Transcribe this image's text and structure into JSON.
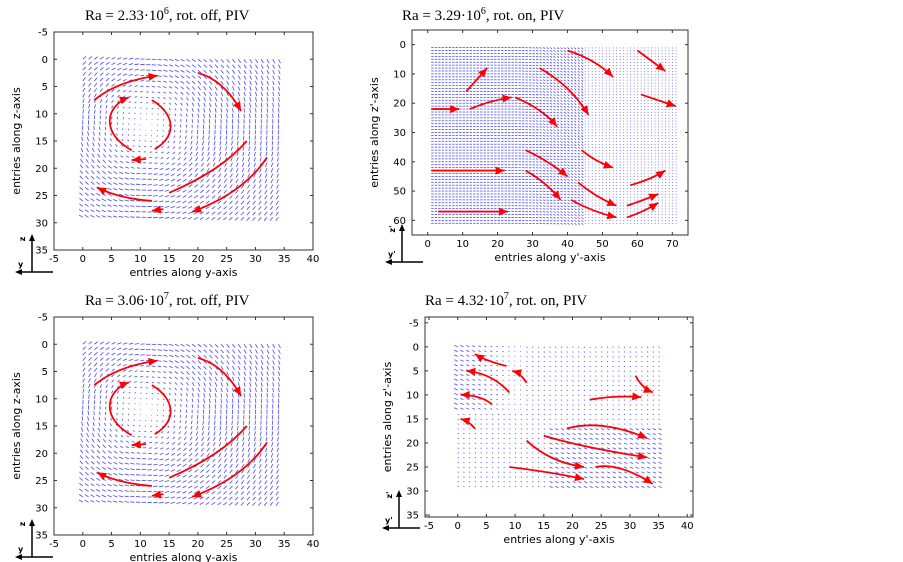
{
  "chart_data": [
    {
      "type": "quiver",
      "title": "Ra = 2.33·10",
      "title_exp": "6",
      "title_suffix": ", rot. off, PIV",
      "xlabel": "entries along y-axis",
      "ylabel": "entries along z-axis",
      "xlim": [
        -5,
        40
      ],
      "ylim": [
        35,
        -5
      ],
      "xticks": [
        -5,
        0,
        5,
        10,
        15,
        20,
        25,
        30,
        35,
        40
      ],
      "yticks": [
        -5,
        0,
        5,
        10,
        15,
        20,
        25,
        30,
        35
      ],
      "grid_x": [
        0,
        34
      ],
      "grid_y": [
        0,
        29
      ],
      "flow_pattern": "clockwise vortex",
      "frame_axes": {
        "vertical": "z",
        "horizontal": "y"
      },
      "vector_color": "#3333ff",
      "annotation_color": "#ff0000",
      "streamline_arrows": [
        {
          "points": [
            [
              2,
              7.5
            ],
            [
              6,
              4
            ],
            [
              13,
              3
            ]
          ],
          "head": true
        },
        {
          "points": [
            [
              20,
              2.5
            ],
            [
              24.5,
              3.8
            ],
            [
              27.5,
              9.5
            ]
          ],
          "head": true
        },
        {
          "points": [
            [
              8.5,
              16.7
            ],
            [
              3,
              13.5
            ],
            [
              4,
              8.5
            ],
            [
              8,
              7
            ]
          ],
          "head": true
        },
        {
          "points": [
            [
              12,
              7.5
            ],
            [
              16,
              10
            ],
            [
              16.5,
              14
            ],
            [
              12.5,
              16.5
            ]
          ],
          "head": false
        },
        {
          "points": [
            [
              11,
              18.3
            ],
            [
              8.5,
              18.5
            ]
          ],
          "head": true
        },
        {
          "points": [
            [
              15,
              24.5
            ],
            [
              24,
              20.5
            ],
            [
              28.5,
              15
            ]
          ],
          "head": false
        },
        {
          "points": [
            [
              12,
              26
            ],
            [
              6,
              25.5
            ],
            [
              2.5,
              23.5
            ]
          ],
          "head": true
        },
        {
          "points": [
            [
              14,
              27.5
            ],
            [
              12,
              27.8
            ]
          ],
          "head": true
        },
        {
          "points": [
            [
              32,
              18
            ],
            [
              28,
              24.5
            ],
            [
              19,
              28
            ]
          ],
          "head": true
        }
      ]
    },
    {
      "type": "quiver",
      "title": "Ra = 3.29·10",
      "title_exp": "6",
      "title_suffix": ", rot. on, PIV",
      "xlabel": "entries along y'-axis",
      "ylabel": "entries along z'-axis",
      "xlim": [
        -4.5,
        74.5
      ],
      "ylim": [
        65,
        -5
      ],
      "xticks": [
        0,
        10,
        20,
        30,
        40,
        50,
        60,
        70
      ],
      "yticks": [
        0,
        10,
        20,
        30,
        40,
        50,
        60
      ],
      "grid_x": [
        1,
        71
      ],
      "grid_y": [
        1,
        61
      ],
      "flow_pattern": "shear flow to the right, deflected downward",
      "frame_axes": {
        "vertical": "z'",
        "horizontal": "y'"
      },
      "vector_color": "#3333ff",
      "annotation_color": "#ff0000",
      "streamline_arrows": [
        {
          "points": [
            [
              11,
              16
            ],
            [
              17,
              8
            ]
          ],
          "head": true
        },
        {
          "points": [
            [
              1,
              22
            ],
            [
              9,
              22
            ]
          ],
          "head": true
        },
        {
          "points": [
            [
              12,
              22
            ],
            [
              18,
              19
            ],
            [
              24,
              18
            ]
          ],
          "head": true
        },
        {
          "points": [
            [
              25,
              18
            ],
            [
              33,
              22
            ],
            [
              37,
              28
            ]
          ],
          "head": true
        },
        {
          "points": [
            [
              32,
              8
            ],
            [
              41,
              14
            ],
            [
              46,
              24
            ]
          ],
          "head": true
        },
        {
          "points": [
            [
              40,
              2
            ],
            [
              48,
              5
            ],
            [
              53,
              11
            ]
          ],
          "head": true
        },
        {
          "points": [
            [
              60,
              2
            ],
            [
              68,
              9
            ]
          ],
          "head": true
        },
        {
          "points": [
            [
              61,
              17
            ],
            [
              71,
              21
            ]
          ],
          "head": true
        },
        {
          "points": [
            [
              1,
              43
            ],
            [
              22,
              43
            ]
          ],
          "head": true
        },
        {
          "points": [
            [
              3,
              57
            ],
            [
              23,
              57
            ]
          ],
          "head": true
        },
        {
          "points": [
            [
              28,
              36
            ],
            [
              35,
              40
            ],
            [
              40,
              45
            ]
          ],
          "head": true
        },
        {
          "points": [
            [
              28,
              43
            ],
            [
              34,
              47
            ],
            [
              38,
              53
            ]
          ],
          "head": true
        },
        {
          "points": [
            [
              44,
              36
            ],
            [
              48,
              40
            ],
            [
              53,
              42
            ]
          ],
          "head": true
        },
        {
          "points": [
            [
              43,
              47
            ],
            [
              48,
              52
            ],
            [
              54,
              55
            ]
          ],
          "head": true
        },
        {
          "points": [
            [
              41,
              53
            ],
            [
              47,
              57
            ],
            [
              54,
              59
            ]
          ],
          "head": true
        },
        {
          "points": [
            [
              58,
              48
            ],
            [
              64,
              46
            ],
            [
              68,
              43
            ]
          ],
          "head": true
        },
        {
          "points": [
            [
              57,
              55
            ],
            [
              62,
              53
            ],
            [
              66,
              51
            ]
          ],
          "head": true
        },
        {
          "points": [
            [
              57,
              59
            ],
            [
              62,
              57
            ],
            [
              66,
              54
            ]
          ],
          "head": true
        }
      ]
    },
    {
      "type": "quiver",
      "title": "Ra = 3.06·10",
      "title_exp": "7",
      "title_suffix": ", rot. off, PIV",
      "xlabel": "entries along y-axis",
      "ylabel": "entries along z-axis",
      "xlim": [
        -5,
        40
      ],
      "ylim": [
        35,
        -5
      ],
      "xticks": [
        -5,
        0,
        5,
        10,
        15,
        20,
        25,
        30,
        35,
        40
      ],
      "yticks": [
        -5,
        0,
        5,
        10,
        15,
        20,
        25,
        30,
        35
      ],
      "grid_x": [
        0,
        34
      ],
      "grid_y": [
        0,
        29
      ],
      "flow_pattern": "clockwise vortex",
      "frame_axes": {
        "vertical": "z",
        "horizontal": "y"
      },
      "vector_color": "#3333ff",
      "annotation_color": "#ff0000",
      "streamline_arrows": [
        {
          "points": [
            [
              2,
              7.5
            ],
            [
              6,
              4
            ],
            [
              13,
              3
            ]
          ],
          "head": true
        },
        {
          "points": [
            [
              20,
              2.5
            ],
            [
              24.5,
              3.8
            ],
            [
              27.5,
              9.5
            ]
          ],
          "head": true
        },
        {
          "points": [
            [
              8.5,
              16.7
            ],
            [
              3,
              13.5
            ],
            [
              4,
              8.5
            ],
            [
              8,
              7
            ]
          ],
          "head": true
        },
        {
          "points": [
            [
              12,
              7.5
            ],
            [
              16,
              10
            ],
            [
              16.5,
              14
            ],
            [
              12.5,
              16.5
            ]
          ],
          "head": false
        },
        {
          "points": [
            [
              11,
              18.3
            ],
            [
              8.5,
              18.5
            ]
          ],
          "head": true
        },
        {
          "points": [
            [
              15,
              24.5
            ],
            [
              24,
              20.5
            ],
            [
              28.5,
              15
            ]
          ],
          "head": false
        },
        {
          "points": [
            [
              12,
              26
            ],
            [
              6,
              25.5
            ],
            [
              2.5,
              23.5
            ]
          ],
          "head": true
        },
        {
          "points": [
            [
              14,
              27.5
            ],
            [
              12,
              27.8
            ]
          ],
          "head": true
        },
        {
          "points": [
            [
              32,
              18
            ],
            [
              28,
              24.5
            ],
            [
              19,
              28
            ]
          ],
          "head": true
        }
      ]
    },
    {
      "type": "quiver",
      "title": "Ra = 4.32·10",
      "title_exp": "7",
      "title_suffix": ", rot. on, PIV",
      "xlabel": "entries along y'-axis",
      "ylabel": "entries along z'-axis",
      "xlim": [
        -5.7,
        41
      ],
      "ylim": [
        35.4,
        -6.2
      ],
      "xticks": [
        -5,
        0,
        5,
        10,
        15,
        20,
        25,
        30,
        35,
        40
      ],
      "yticks": [
        -5,
        0,
        5,
        10,
        15,
        20,
        25,
        30,
        35
      ],
      "grid_x": [
        0,
        35
      ],
      "grid_y": [
        0,
        29
      ],
      "flow_pattern": "leftward flow top-left, rightward flow bottom-right",
      "frame_axes": {
        "vertical": "z'",
        "horizontal": "y'"
      },
      "vector_color": "#3333ff",
      "annotation_color": "#ff0000",
      "streamline_arrows": [
        {
          "points": [
            [
              8.5,
              4
            ],
            [
              5,
              3
            ],
            [
              3,
              1.5
            ]
          ],
          "head": true
        },
        {
          "points": [
            [
              9,
              9.5
            ],
            [
              6,
              5.5
            ],
            [
              1.5,
              5
            ]
          ],
          "head": true
        },
        {
          "points": [
            [
              6,
              12
            ],
            [
              4,
              10
            ],
            [
              0.5,
              10
            ]
          ],
          "head": true
        },
        {
          "points": [
            [
              3,
              17
            ],
            [
              2,
              15.5
            ],
            [
              0.5,
              15
            ]
          ],
          "head": true
        },
        {
          "points": [
            [
              12,
              7.5
            ],
            [
              11,
              5.5
            ],
            [
              9.5,
              5
            ]
          ],
          "head": true
        },
        {
          "points": [
            [
              31,
              6
            ],
            [
              32,
              8.5
            ],
            [
              34,
              9.5
            ]
          ],
          "head": true
        },
        {
          "points": [
            [
              23,
              11
            ],
            [
              28,
              10
            ],
            [
              32,
              10.5
            ]
          ],
          "head": true
        },
        {
          "points": [
            [
              19,
              17
            ],
            [
              25,
              15
            ],
            [
              33,
              19
            ]
          ],
          "head": true
        },
        {
          "points": [
            [
              15,
              18.5
            ],
            [
              22,
              21
            ],
            [
              33,
              23
            ]
          ],
          "head": true
        },
        {
          "points": [
            [
              12,
              19.5
            ],
            [
              16,
              24
            ],
            [
              22,
              25
            ]
          ],
          "head": true
        },
        {
          "points": [
            [
              9,
              25
            ],
            [
              16,
              26
            ],
            [
              22,
              27.5
            ]
          ],
          "head": true
        },
        {
          "points": [
            [
              24,
              25
            ],
            [
              28,
              24
            ],
            [
              34,
              28.5
            ]
          ],
          "head": true
        }
      ]
    }
  ]
}
